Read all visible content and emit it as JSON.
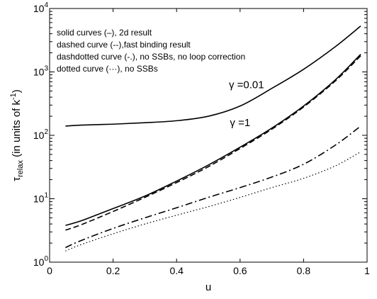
{
  "chart_data": {
    "type": "line",
    "title": "",
    "xlabel": "u",
    "ylabel": {
      "base": "τ",
      "sub": "relax",
      "rest": " (in units of k",
      "sup": "-1",
      "close": ")"
    },
    "xlim": [
      0,
      1
    ],
    "ylim": [
      1,
      10000
    ],
    "yscale": "log",
    "grid": false,
    "x_ticks": [
      0,
      0.2,
      0.4,
      0.6,
      0.8,
      1
    ],
    "x_tick_labels": [
      "0",
      "0.2",
      "0.4",
      "0.6",
      "0.8",
      "1"
    ],
    "y_ticks": [
      1,
      10,
      100,
      1000,
      10000
    ],
    "y_tick_labels": [
      {
        "base": "10",
        "exp": "0"
      },
      {
        "base": "10",
        "exp": "1"
      },
      {
        "base": "10",
        "exp": "2"
      },
      {
        "base": "10",
        "exp": "3"
      },
      {
        "base": "10",
        "exp": "4"
      }
    ],
    "legend_lines": [
      "solid curves (–), 2d result",
      "dashed curve (--),fast binding result",
      "dashdotted curve (-.), no SSBs, no loop correction",
      "dotted curve (···), no SSBs"
    ],
    "annotations": [
      {
        "text": "γ =0.01",
        "x": 0.62,
        "y": 550
      },
      {
        "text": "γ =1",
        "x": 0.6,
        "y": 140
      }
    ],
    "x": [
      0.05,
      0.1,
      0.2,
      0.3,
      0.4,
      0.5,
      0.6,
      0.7,
      0.8,
      0.9,
      0.98
    ],
    "series": [
      {
        "style": "solid",
        "values": [
          140,
          145,
          150,
          158,
          170,
          200,
          290,
          550,
          1100,
          2500,
          5300
        ]
      },
      {
        "style": "solid",
        "values": [
          3.8,
          4.5,
          7,
          11,
          19,
          34,
          65,
          130,
          290,
          750,
          1900
        ]
      },
      {
        "style": "dashed",
        "values": [
          3.2,
          3.9,
          6.3,
          10.5,
          18,
          32,
          62,
          125,
          280,
          720,
          1800
        ]
      },
      {
        "style": "dashdot",
        "values": [
          1.7,
          2.2,
          3.4,
          5,
          7.2,
          10.5,
          15,
          22,
          35,
          70,
          140
        ]
      },
      {
        "style": "dotted",
        "values": [
          1.5,
          1.9,
          2.8,
          4,
          5.5,
          7.5,
          10.5,
          15,
          21,
          33,
          55
        ]
      }
    ]
  }
}
